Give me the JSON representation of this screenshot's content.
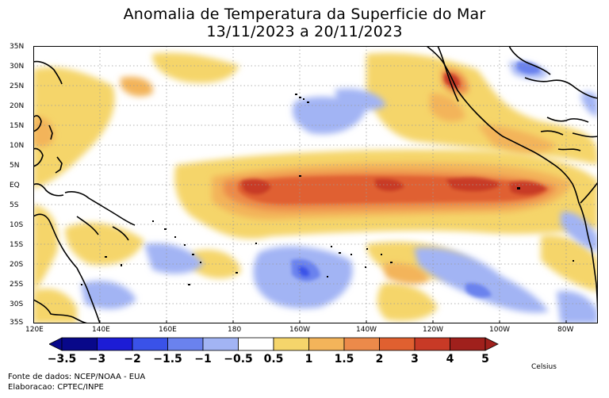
{
  "title": {
    "line1": "Anomalia de Temperatura da Superficie do Mar",
    "line2": "13/11/2023 a 20/11/2023"
  },
  "latitude_labels": [
    "35N",
    "30N",
    "25N",
    "20N",
    "15N",
    "10N",
    "5N",
    "EQ",
    "5S",
    "10S",
    "15S",
    "20S",
    "25S",
    "30S",
    "35S"
  ],
  "longitude_labels": [
    "120E",
    "140E",
    "160E",
    "180",
    "160W",
    "140W",
    "120W",
    "100W",
    "80W"
  ],
  "colorbar": {
    "ticks": [
      "-3.5",
      "-3",
      "-2",
      "-1.5",
      "-1",
      "-0.5",
      "0.5",
      "1",
      "1.5",
      "2",
      "3",
      "4",
      "5"
    ],
    "colors": [
      "#08088a",
      "#1c1cd6",
      "#3a52e8",
      "#6a82ee",
      "#a2b4f4",
      "#ffffff",
      "#f5d56b",
      "#f3b45a",
      "#ec8a4a",
      "#e06030",
      "#c83a26",
      "#a0201c"
    ],
    "units": "Celsius"
  },
  "credits": {
    "line1": "Fonte de dados: NCEP/NOAA - EUA",
    "line2": "Elaboracao: CPTEC/INPE"
  }
}
